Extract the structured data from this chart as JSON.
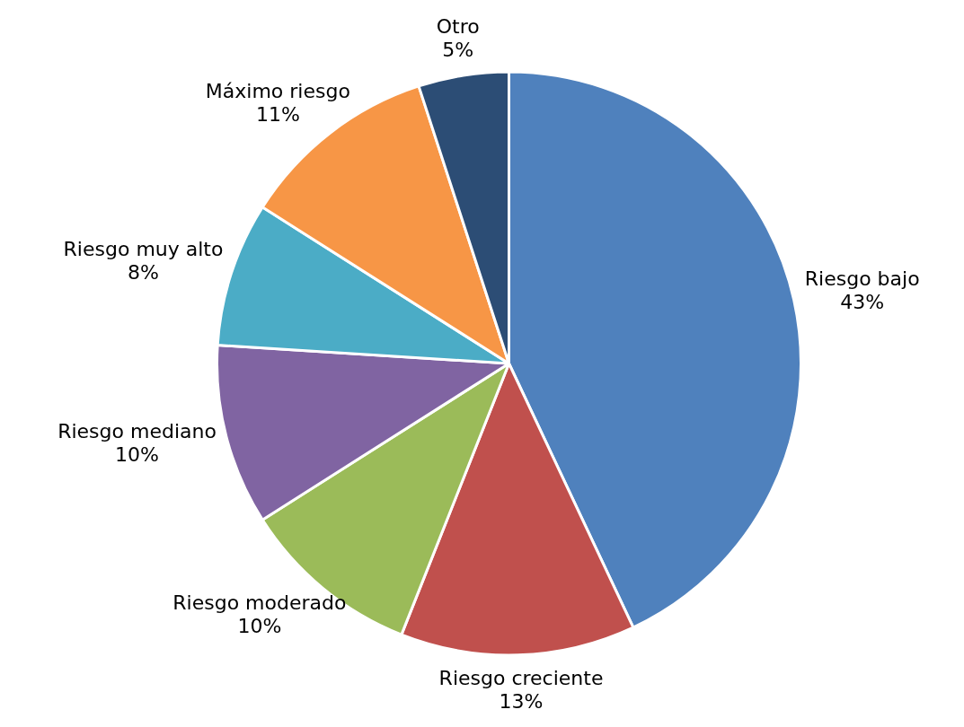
{
  "chart_data": {
    "type": "pie",
    "categories": [
      "Riesgo bajo",
      "Riesgo creciente",
      "Riesgo moderado",
      "Riesgo mediano",
      "Riesgo muy alto",
      "Máximo riesgo",
      "Otro"
    ],
    "values": [
      43,
      13,
      10,
      10,
      8,
      11,
      5
    ],
    "colors": [
      "#4f81bd",
      "#c0504d",
      "#9bbb59",
      "#8064a2",
      "#4bacc6",
      "#f79646",
      "#2c4d75"
    ],
    "value_labels": [
      "43%",
      "13%",
      "10%",
      "10%",
      "8%",
      "11%",
      "5%"
    ],
    "legend": false
  }
}
